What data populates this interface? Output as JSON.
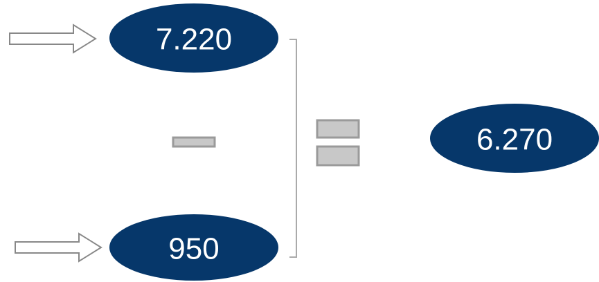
{
  "nodes": [
    {
      "label": "7.220"
    },
    {
      "label": "950"
    },
    {
      "label": "6.270"
    }
  ]
}
